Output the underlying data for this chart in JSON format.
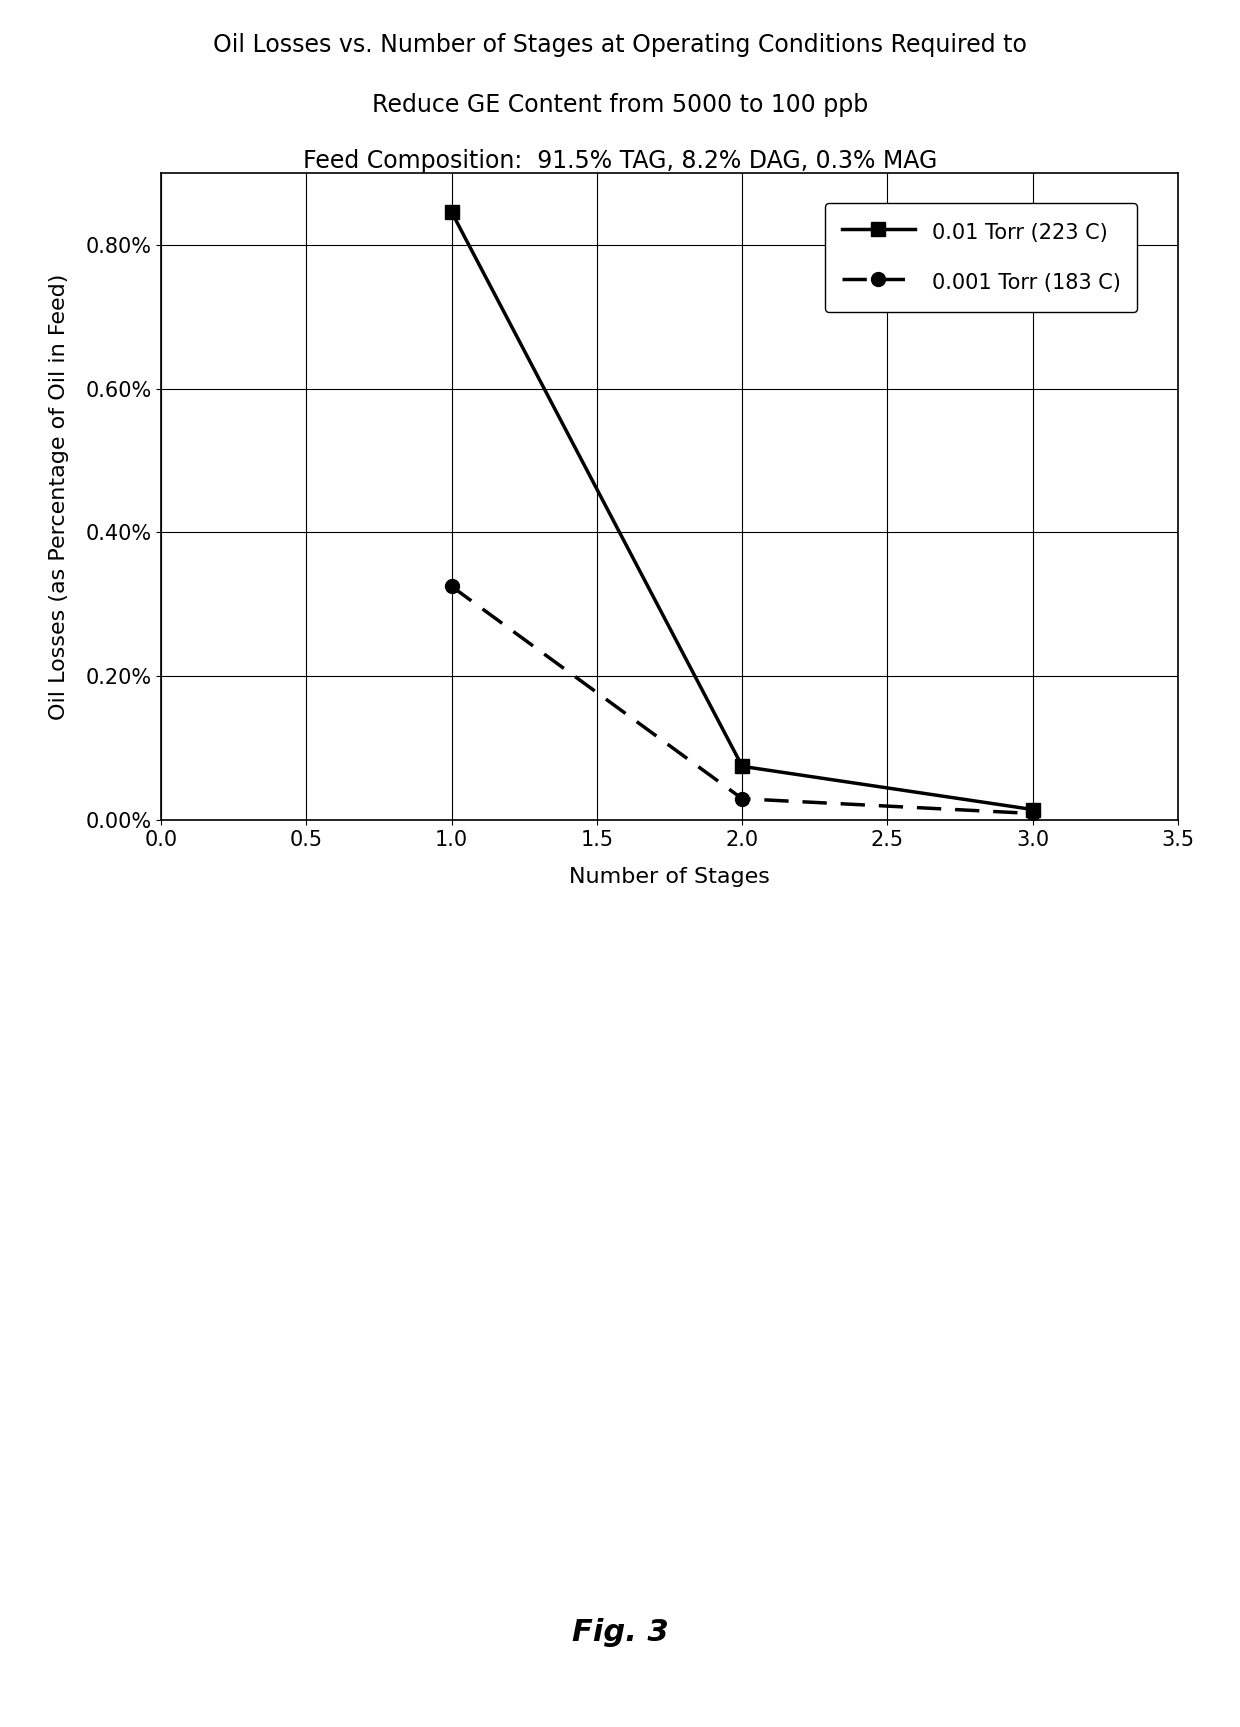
{
  "title_line1": "Oil Losses vs. Number of Stages at Operating Conditions Required to",
  "title_line2": "Reduce GE Content from 5000 to 100 ppb",
  "title_line3": "Feed Composition:  91.5% TAG, 8.2% DAG, 0.3% MAG",
  "xlabel": "Number of Stages",
  "ylabel": "Oil Losses (as Percentage of Oil in Feed)",
  "series1_label": "0.01 Torr (223 C)",
  "series1_x": [
    1,
    2,
    3
  ],
  "series1_y": [
    0.00845,
    0.00075,
    0.00015
  ],
  "series1_linestyle": "solid",
  "series1_marker": "s",
  "series2_label": "0.001 Torr (183 C)",
  "series2_x": [
    1,
    2,
    3
  ],
  "series2_y": [
    0.00325,
    0.0003,
    9.5e-05
  ],
  "series2_linestyle": "dashed",
  "series2_marker": "o",
  "line_color": "#000000",
  "xlim": [
    0.0,
    3.5
  ],
  "ylim": [
    0.0,
    0.009
  ],
  "xticks": [
    0.0,
    0.5,
    1.0,
    1.5,
    2.0,
    2.5,
    3.0,
    3.5
  ],
  "ytick_values": [
    0.0,
    0.002,
    0.004,
    0.006,
    0.008
  ],
  "ytick_labels": [
    "0.00%",
    "0.20%",
    "0.40%",
    "0.60%",
    "0.80%"
  ],
  "fig_caption": "Fig. 3",
  "background_color": "#ffffff",
  "title_fontsize": 17,
  "axis_label_fontsize": 16,
  "tick_fontsize": 15,
  "legend_fontsize": 15,
  "caption_fontsize": 22
}
